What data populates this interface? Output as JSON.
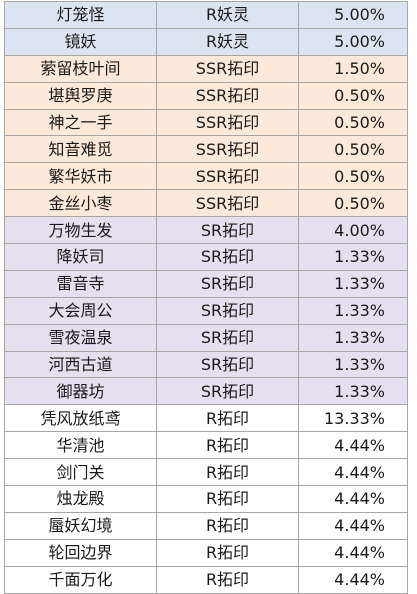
{
  "colors": {
    "blue": "#dbe5f1",
    "orange": "#fde9d9",
    "purple": "#e5dff0",
    "white": "#ffffff",
    "border": "#a6a6a6"
  },
  "rows": [
    {
      "name": "灯笼怪",
      "type": "R妖灵",
      "rate": "5.00%",
      "tone": "blue"
    },
    {
      "name": "镜妖",
      "type": "R妖灵",
      "rate": "5.00%",
      "tone": "blue"
    },
    {
      "name": "萦留枝叶间",
      "type": "SSR拓印",
      "rate": "1.50%",
      "tone": "orange"
    },
    {
      "name": "堪舆罗庚",
      "type": "SSR拓印",
      "rate": "0.50%",
      "tone": "orange"
    },
    {
      "name": "神之一手",
      "type": "SSR拓印",
      "rate": "0.50%",
      "tone": "orange"
    },
    {
      "name": "知音难觅",
      "type": "SSR拓印",
      "rate": "0.50%",
      "tone": "orange"
    },
    {
      "name": "繁华妖市",
      "type": "SSR拓印",
      "rate": "0.50%",
      "tone": "orange"
    },
    {
      "name": "金丝小枣",
      "type": "SSR拓印",
      "rate": "0.50%",
      "tone": "orange"
    },
    {
      "name": "万物生发",
      "type": "SR拓印",
      "rate": "4.00%",
      "tone": "purple"
    },
    {
      "name": "降妖司",
      "type": "SR拓印",
      "rate": "1.33%",
      "tone": "purple"
    },
    {
      "name": "雷音寺",
      "type": "SR拓印",
      "rate": "1.33%",
      "tone": "purple"
    },
    {
      "name": "大会周公",
      "type": "SR拓印",
      "rate": "1.33%",
      "tone": "purple"
    },
    {
      "name": "雪夜温泉",
      "type": "SR拓印",
      "rate": "1.33%",
      "tone": "purple"
    },
    {
      "name": "河西古道",
      "type": "SR拓印",
      "rate": "1.33%",
      "tone": "purple"
    },
    {
      "name": "御器坊",
      "type": "SR拓印",
      "rate": "1.33%",
      "tone": "purple"
    },
    {
      "name": "凭风放纸鸢",
      "type": "R拓印",
      "rate": "13.33%",
      "tone": "white"
    },
    {
      "name": "华清池",
      "type": "R拓印",
      "rate": "4.44%",
      "tone": "white"
    },
    {
      "name": "剑门关",
      "type": "R拓印",
      "rate": "4.44%",
      "tone": "white"
    },
    {
      "name": "烛龙殿",
      "type": "R拓印",
      "rate": "4.44%",
      "tone": "white"
    },
    {
      "name": "蜃妖幻境",
      "type": "R拓印",
      "rate": "4.44%",
      "tone": "white"
    },
    {
      "name": "轮回边界",
      "type": "R拓印",
      "rate": "4.44%",
      "tone": "white"
    },
    {
      "name": "千面万化",
      "type": "R拓印",
      "rate": "4.44%",
      "tone": "white"
    }
  ]
}
